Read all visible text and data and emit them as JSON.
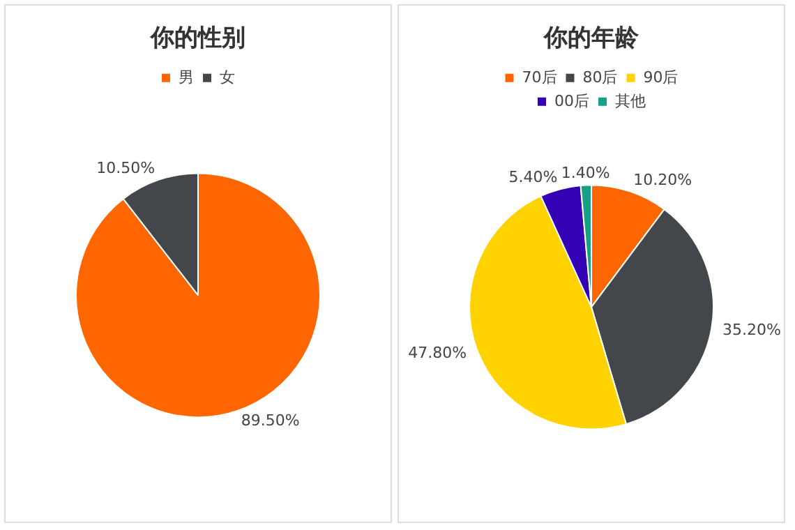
{
  "chart_data": [
    {
      "type": "pie",
      "title": "你的性别",
      "categories": [
        "男",
        "女"
      ],
      "values": [
        89.5,
        10.5
      ],
      "value_labels": [
        "89.50%",
        "10.50%"
      ],
      "colors": [
        "#ff6600",
        "#43464b"
      ],
      "legend": "top"
    },
    {
      "type": "pie",
      "title": "你的年龄",
      "categories": [
        "70后",
        "80后",
        "90后",
        "00后",
        "其他"
      ],
      "values": [
        10.2,
        35.2,
        47.8,
        5.4,
        1.4
      ],
      "value_labels": [
        "10.20%",
        "35.20%",
        "47.80%",
        "5.40%",
        "1.40%"
      ],
      "colors": [
        "#ff6600",
        "#43464b",
        "#ffd200",
        "#3300b4",
        "#16a085"
      ],
      "legend": "top"
    }
  ]
}
